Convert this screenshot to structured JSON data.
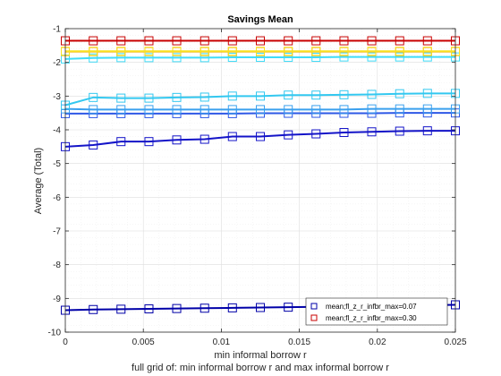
{
  "chart_data": {
    "type": "line",
    "title": "Savings Mean",
    "xlabel": "min informal borrow r",
    "ylabel": "Average (Total)",
    "footer": "full grid of: min informal borrow r and max informal borrow r",
    "xlim": [
      0,
      0.025
    ],
    "ylim": [
      -10,
      -1
    ],
    "xticks": [
      0,
      0.005,
      0.01,
      0.015,
      0.02,
      0.025
    ],
    "xtick_labels": [
      "0",
      "0.005",
      "0.01",
      "0.015",
      "0.02",
      "0.025"
    ],
    "yticks": [
      -10,
      -9,
      -8,
      -7,
      -6,
      -5,
      -4,
      -3,
      -2,
      -1
    ],
    "ytick_labels": [
      "-10",
      "-9",
      "-8",
      "-7",
      "-6",
      "-5",
      "-4",
      "-3",
      "-2",
      "-1"
    ],
    "grid": true,
    "legend_position": "bottom-right",
    "x": [
      0,
      0.00179,
      0.00357,
      0.00536,
      0.00714,
      0.00893,
      0.01071,
      0.0125,
      0.01429,
      0.01607,
      0.01786,
      0.01964,
      0.02143,
      0.02321,
      0.025
    ],
    "series": [
      {
        "name": "mean;fl_z_r_infbr_max=0.07",
        "color": "#0000a8",
        "values": [
          -9.35,
          -9.33,
          -9.32,
          -9.31,
          -9.3,
          -9.29,
          -9.28,
          -9.27,
          -9.26,
          -9.25,
          -9.24,
          -9.22,
          -9.21,
          -9.2,
          -9.19
        ]
      },
      {
        "color": "#1414c8",
        "values": [
          -4.5,
          -4.45,
          -4.35,
          -4.35,
          -4.3,
          -4.28,
          -4.2,
          -4.2,
          -4.15,
          -4.12,
          -4.08,
          -4.06,
          -4.04,
          -4.03,
          -4.03
        ]
      },
      {
        "color": "#2e58e6",
        "values": [
          -3.52,
          -3.52,
          -3.52,
          -3.52,
          -3.52,
          -3.52,
          -3.52,
          -3.51,
          -3.51,
          -3.51,
          -3.51,
          -3.51,
          -3.5,
          -3.5,
          -3.5
        ]
      },
      {
        "color": "#3aa0ee",
        "values": [
          -3.38,
          -3.4,
          -3.4,
          -3.4,
          -3.4,
          -3.4,
          -3.4,
          -3.4,
          -3.4,
          -3.4,
          -3.4,
          -3.38,
          -3.38,
          -3.38,
          -3.38
        ]
      },
      {
        "color": "#33c8f0",
        "values": [
          -3.27,
          -3.04,
          -3.06,
          -3.06,
          -3.04,
          -3.03,
          -3.0,
          -3.0,
          -2.97,
          -2.97,
          -2.96,
          -2.95,
          -2.93,
          -2.92,
          -2.92
        ]
      },
      {
        "color": "#40dcf8",
        "values": [
          -1.9,
          -1.87,
          -1.86,
          -1.86,
          -1.86,
          -1.86,
          -1.85,
          -1.85,
          -1.85,
          -1.85,
          -1.84,
          -1.84,
          -1.84,
          -1.84,
          -1.84
        ]
      },
      {
        "color": "#f0a000",
        "values": [
          -1.68,
          -1.68,
          -1.68,
          -1.68,
          -1.68,
          -1.68,
          -1.68,
          -1.68,
          -1.68,
          -1.68,
          -1.68,
          -1.68,
          -1.68,
          -1.68,
          -1.68
        ]
      },
      {
        "color": "#f8e020",
        "values": [
          -1.67,
          -1.67,
          -1.67,
          -1.67,
          -1.67,
          -1.67,
          -1.67,
          -1.67,
          -1.67,
          -1.67,
          -1.67,
          -1.67,
          -1.67,
          -1.67,
          -1.67
        ]
      },
      {
        "name": "mean;fl_z_r_infbr_max=0.30",
        "color": "#c80000",
        "values": [
          -1.36,
          -1.36,
          -1.36,
          -1.36,
          -1.36,
          -1.36,
          -1.36,
          -1.36,
          -1.36,
          -1.36,
          -1.36,
          -1.36,
          -1.36,
          -1.36,
          -1.36
        ]
      }
    ],
    "legend": [
      {
        "label": "mean;fl_z_r_infbr_max=0.07",
        "color": "#0000a8"
      },
      {
        "label": "mean;fl_z_r_infbr_max=0.30",
        "color": "#c80000"
      }
    ]
  }
}
